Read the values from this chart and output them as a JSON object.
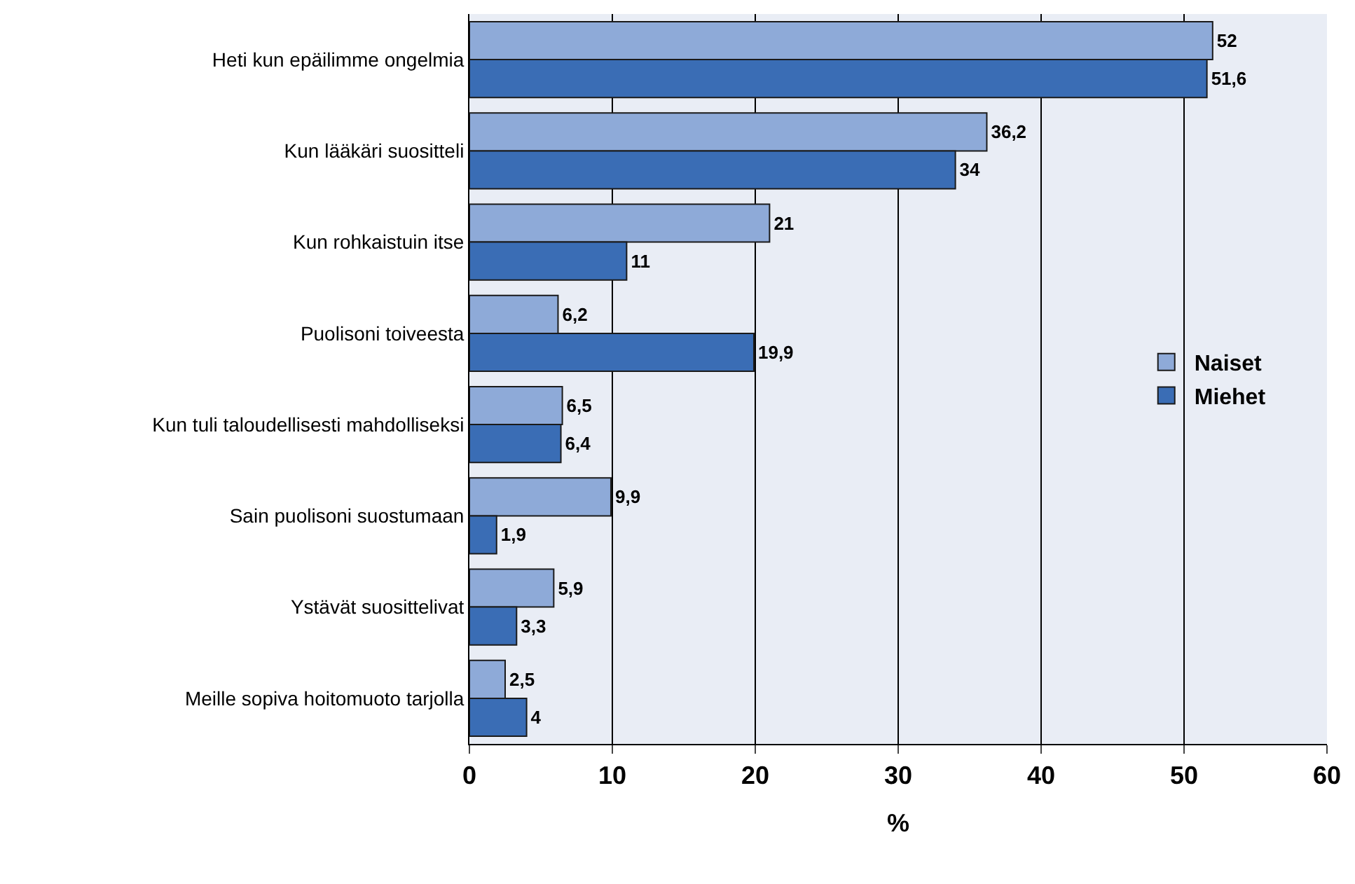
{
  "chart_data": {
    "type": "bar",
    "orientation": "horizontal",
    "xlabel": "%",
    "categories": [
      "Heti kun epäilimme ongelmia",
      "Kun lääkäri suositteli",
      "Kun rohkaistuin itse",
      "Puolisoni toiveesta",
      "Kun tuli taloudellisesti mahdolliseksi",
      "Sain puolisoni suostumaan",
      "Ystävät suosittelivat",
      "Meille sopiva hoitomuoto tarjolla"
    ],
    "series": [
      {
        "name": "Naiset",
        "color": "#8eaad8",
        "values": [
          52,
          36.2,
          21,
          6.2,
          6.5,
          9.9,
          5.9,
          2.5
        ],
        "value_labels": [
          "52",
          "36,2",
          "21",
          "6,2",
          "6,5",
          "9,9",
          "5,9",
          "2,5"
        ]
      },
      {
        "name": "Miehet",
        "color": "#3a6db5",
        "values": [
          51.6,
          34,
          11,
          19.9,
          6.4,
          1.9,
          3.3,
          4
        ],
        "value_labels": [
          "51,6",
          "34",
          "11",
          "19,9",
          "6,4",
          "1,9",
          "3,3",
          "4"
        ]
      }
    ],
    "xlim": [
      0,
      60
    ],
    "xticks": [
      0,
      10,
      20,
      30,
      40,
      50,
      60
    ],
    "grid": "x",
    "legend": "right"
  }
}
